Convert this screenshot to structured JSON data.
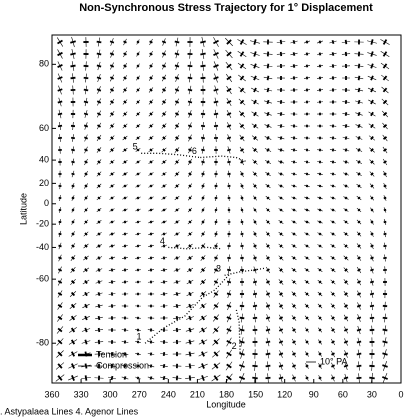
{
  "chart_data": {
    "type": "line",
    "title": "Non-Synchronous Stress Trajectory for 1° Displacement",
    "x_label": "Longitude",
    "y_label": "Latitude",
    "xlim": [
      360,
      0
    ],
    "xticks": [
      360,
      330,
      300,
      270,
      240,
      210,
      180,
      150,
      120,
      90,
      60,
      30,
      0
    ],
    "ylim": [
      -85,
      84
    ],
    "yticks": [
      80,
      60,
      40,
      20,
      0,
      -20,
      -40,
      -60,
      -80
    ],
    "y_scale": "mercator",
    "color": "#000000",
    "series": [
      {
        "name": "1",
        "x": [
          264,
          245,
          223,
          205,
          192,
          176
        ],
        "values": [
          -80,
          -77,
          -74,
          -68,
          -65,
          -57
        ]
      },
      {
        "name": "2",
        "x": [
          166,
          167,
          170
        ],
        "values": [
          -81.5,
          -75.5,
          -72
        ]
      },
      {
        "name": "3",
        "x": [
          182,
          165,
          150,
          140
        ],
        "values": [
          -58,
          -56,
          -55,
          -54
        ]
      },
      {
        "name": "4",
        "x": [
          240,
          220,
          200,
          185
        ],
        "values": [
          -40,
          -41,
          -40,
          -41
        ]
      },
      {
        "name": "5",
        "x": [
          268,
          250,
          230,
          207
        ],
        "values": [
          45,
          45,
          44,
          42
        ]
      },
      {
        "name": "6",
        "x": [
          207,
          185,
          170,
          160
        ],
        "values": [
          42,
          43,
          42,
          39
        ]
      }
    ],
    "legend": [
      "Tension",
      "Compression"
    ],
    "scale_label": "10° PA",
    "footnote": ". Astypalaea Lines   4. Agenor Lines"
  }
}
